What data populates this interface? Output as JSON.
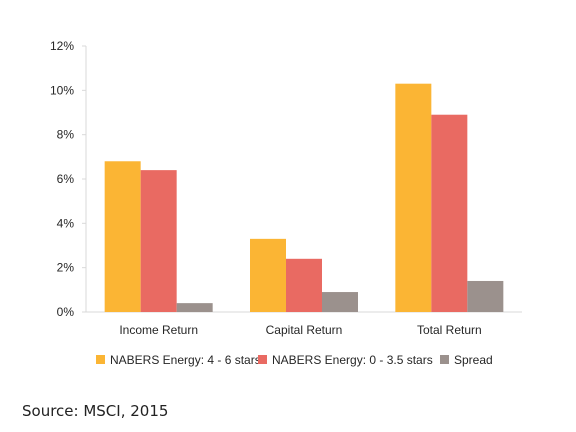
{
  "chart_data": {
    "type": "bar",
    "categories": [
      "Income Return",
      "Capital Return",
      "Total Return"
    ],
    "series": [
      {
        "name": "NABERS Energy: 4 - 6 stars",
        "values": [
          6.8,
          3.3,
          10.3
        ],
        "color": "#FBB534"
      },
      {
        "name": "NABERS Energy: 0 - 3.5 stars",
        "values": [
          6.4,
          2.4,
          8.9
        ],
        "color": "#E96A62"
      },
      {
        "name": "Spread",
        "values": [
          0.4,
          0.9,
          1.4
        ],
        "color": "#9B918D"
      }
    ],
    "y_ticks": [
      "0%",
      "2%",
      "4%",
      "6%",
      "8%",
      "10%",
      "12%"
    ],
    "ylim": [
      0,
      12
    ],
    "y_unit": "%",
    "grid": false,
    "legend_position": "bottom",
    "title": "",
    "xlabel": "",
    "ylabel": ""
  },
  "source": "Source: MSCI, 2015"
}
